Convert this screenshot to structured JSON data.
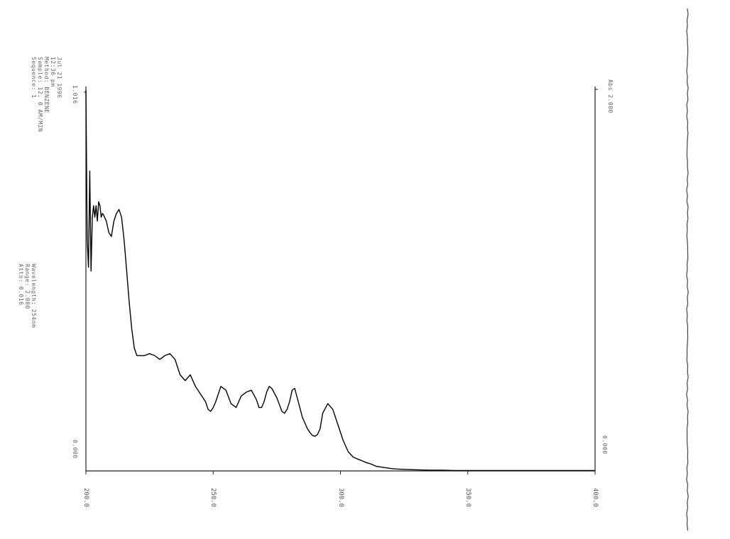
{
  "header_lines": [
    "Jul 21 1996",
    "12:36 pm",
    "Method: BENZENE",
    "Sample: 12, 0 AM/MIN",
    "Sequence: 1"
  ],
  "info_lines": [
    "Wavelength: 254nm",
    "Range: 2.000",
    "Attn: 0.016"
  ],
  "left_axis_labels": {
    "top": "1.016",
    "bottom": "0.000"
  },
  "right_axis_labels": {
    "top": "Abs 2.000",
    "bottom": "0.000"
  },
  "chart_data": {
    "type": "line",
    "title": "",
    "xlabel": "",
    "ylabel": "",
    "x_ticks": [
      "200.0",
      "250.0",
      "300.0",
      "350.0",
      "400.0"
    ],
    "xlim": [
      200,
      400
    ],
    "ylim": [
      0,
      1.0
    ],
    "series": [
      {
        "x": [
          200.0,
          200.5,
          201.0,
          201.5,
          202.0,
          202.5,
          203.0,
          203.5,
          204.0,
          204.5,
          205.0,
          205.5,
          206.0,
          206.5,
          207.0,
          208.0,
          209.0,
          210.0,
          211.0,
          212.0,
          213.0,
          214.0,
          215.0,
          216.0,
          217.0,
          218.0,
          219.0,
          220.0,
          221.0,
          222.0,
          223.0,
          225.0,
          227.0,
          229.0,
          231.0,
          233.0,
          235.0,
          237.0,
          239.0,
          241.0,
          243.0,
          245.0,
          247.0,
          248.0,
          249.0,
          250.0,
          251.0,
          252.0,
          253.0,
          255.0,
          257.0,
          259.0,
          261.0,
          263.0,
          265.0,
          267.0,
          268.0,
          269.0,
          270.0,
          271.0,
          272.0,
          273.0,
          275.0,
          277.0,
          278.0,
          279.0,
          280.0,
          281.0,
          282.0,
          283.0,
          285.0,
          287.0,
          288.0,
          289.0,
          290.0,
          291.0,
          292.0,
          293.0,
          295.0,
          297.0,
          299.0,
          301.0,
          303.0,
          305.0,
          307.0,
          309.0,
          310.0,
          311.0,
          312.0,
          313.0,
          314.0,
          316.0,
          318.0,
          320.0,
          322.0,
          325.0,
          330.0,
          335.0,
          340.0,
          345.0,
          350.0,
          360.0,
          370.0,
          380.0,
          390.0,
          395.0,
          400.0
        ],
        "y": [
          0.99,
          0.6,
          0.53,
          0.78,
          0.52,
          0.66,
          0.69,
          0.66,
          0.69,
          0.65,
          0.7,
          0.69,
          0.66,
          0.67,
          0.665,
          0.65,
          0.62,
          0.61,
          0.65,
          0.67,
          0.68,
          0.66,
          0.6,
          0.52,
          0.44,
          0.37,
          0.32,
          0.3,
          0.3,
          0.3,
          0.3,
          0.305,
          0.3,
          0.29,
          0.3,
          0.305,
          0.29,
          0.25,
          0.235,
          0.25,
          0.22,
          0.2,
          0.18,
          0.16,
          0.155,
          0.165,
          0.18,
          0.2,
          0.22,
          0.21,
          0.175,
          0.165,
          0.195,
          0.205,
          0.21,
          0.185,
          0.165,
          0.165,
          0.18,
          0.205,
          0.22,
          0.215,
          0.19,
          0.155,
          0.15,
          0.16,
          0.18,
          0.21,
          0.215,
          0.19,
          0.14,
          0.11,
          0.1,
          0.092,
          0.09,
          0.095,
          0.11,
          0.15,
          0.175,
          0.16,
          0.12,
          0.08,
          0.05,
          0.036,
          0.03,
          0.025,
          0.022,
          0.02,
          0.018,
          0.015,
          0.012,
          0.01,
          0.008,
          0.006,
          0.005,
          0.004,
          0.003,
          0.002,
          0.002,
          0.001,
          0.001,
          0.001,
          0.001,
          0.001,
          0.001,
          0.001,
          0.001
        ]
      }
    ],
    "line_color": "#000000",
    "grid": false,
    "legend": "none"
  }
}
